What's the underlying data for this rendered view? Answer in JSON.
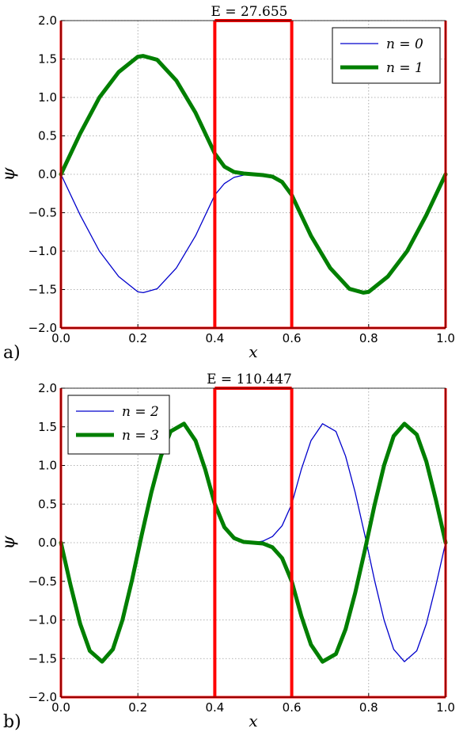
{
  "chart_data": [
    {
      "type": "line",
      "panel_label": "a)",
      "title": "E = 27.655",
      "xlabel": "x",
      "ylabel": "ψ",
      "xlim": [
        0.0,
        1.0
      ],
      "ylim": [
        -2.0,
        2.0
      ],
      "x_ticks": [
        "0.0",
        "0.2",
        "0.4",
        "0.6",
        "0.8",
        "1.0"
      ],
      "y_ticks": [
        "2.0",
        "1.5",
        "1.0",
        "0.5",
        "0.0",
        "−0.5",
        "−1.0",
        "−1.5",
        "−2.0"
      ],
      "grid": true,
      "legend_position": "top-right",
      "barrier_x": [
        0.4,
        0.6
      ],
      "barrier_color": "#ff0000",
      "series": [
        {
          "name": "n = 0",
          "color": "#0000cc",
          "width": "thin",
          "x": [
            0.0,
            0.05,
            0.1,
            0.15,
            0.2,
            0.214,
            0.25,
            0.3,
            0.35,
            0.4,
            0.425,
            0.45,
            0.475,
            0.5,
            0.525,
            0.55,
            0.575,
            0.6,
            0.65,
            0.7,
            0.75,
            0.786,
            0.8,
            0.85,
            0.9,
            0.95,
            1.0
          ],
          "y": [
            0.0,
            -0.53,
            -1.0,
            -1.33,
            -1.53,
            -1.54,
            -1.49,
            -1.22,
            -0.8,
            -0.27,
            -0.12,
            -0.04,
            -0.01,
            0.0,
            -0.01,
            -0.04,
            -0.12,
            -0.27,
            -0.8,
            -1.22,
            -1.49,
            -1.54,
            -1.53,
            -1.33,
            -1.0,
            -0.53,
            0.0
          ]
        },
        {
          "name": "n = 1",
          "color": "#007f00",
          "width": "thick",
          "x": [
            0.0,
            0.05,
            0.1,
            0.15,
            0.2,
            0.214,
            0.25,
            0.3,
            0.35,
            0.4,
            0.425,
            0.45,
            0.475,
            0.5,
            0.525,
            0.55,
            0.575,
            0.6,
            0.65,
            0.7,
            0.75,
            0.786,
            0.8,
            0.85,
            0.9,
            0.95,
            1.0
          ],
          "y": [
            0.0,
            0.53,
            1.0,
            1.33,
            1.53,
            1.54,
            1.49,
            1.22,
            0.8,
            0.27,
            0.1,
            0.03,
            0.01,
            0.0,
            -0.01,
            -0.03,
            -0.1,
            -0.27,
            -0.8,
            -1.22,
            -1.49,
            -1.54,
            -1.53,
            -1.33,
            -1.0,
            -0.53,
            0.0
          ]
        }
      ]
    },
    {
      "type": "line",
      "panel_label": "b)",
      "title": "E = 110.447",
      "xlabel": "x",
      "ylabel": "ψ",
      "xlim": [
        0.0,
        1.0
      ],
      "ylim": [
        -2.0,
        2.0
      ],
      "x_ticks": [
        "0.0",
        "0.2",
        "0.4",
        "0.6",
        "0.8",
        "1.0"
      ],
      "y_ticks": [
        "2.0",
        "1.5",
        "1.0",
        "0.5",
        "0.0",
        "−0.5",
        "−1.0",
        "−1.5",
        "−2.0"
      ],
      "grid": true,
      "legend_position": "top-left",
      "barrier_x": [
        0.4,
        0.6
      ],
      "barrier_color": "#ff0000",
      "series": [
        {
          "name": "n = 2",
          "color": "#0000cc",
          "width": "thin",
          "x": [
            0.0,
            0.025,
            0.05,
            0.075,
            0.107,
            0.135,
            0.16,
            0.185,
            0.21,
            0.235,
            0.26,
            0.285,
            0.32,
            0.35,
            0.375,
            0.4,
            0.425,
            0.45,
            0.475,
            0.5,
            0.525,
            0.55,
            0.575,
            0.6,
            0.625,
            0.65,
            0.68,
            0.715,
            0.74,
            0.765,
            0.79,
            0.815,
            0.84,
            0.865,
            0.893,
            0.925,
            0.95,
            0.975,
            1.0
          ],
          "y": [
            0.0,
            -0.55,
            -1.05,
            -1.4,
            -1.54,
            -1.38,
            -1.0,
            -0.48,
            0.1,
            0.65,
            1.12,
            1.44,
            1.54,
            1.32,
            0.95,
            0.5,
            0.22,
            0.08,
            0.02,
            0.0,
            0.02,
            0.08,
            0.22,
            0.5,
            0.95,
            1.32,
            1.54,
            1.44,
            1.12,
            0.65,
            0.1,
            -0.48,
            -1.0,
            -1.38,
            -1.54,
            -1.4,
            -1.05,
            -0.55,
            0.0
          ]
        },
        {
          "name": "n = 3",
          "color": "#007f00",
          "width": "thick",
          "x": [
            0.0,
            0.025,
            0.05,
            0.075,
            0.107,
            0.135,
            0.16,
            0.185,
            0.21,
            0.235,
            0.26,
            0.285,
            0.32,
            0.35,
            0.375,
            0.4,
            0.425,
            0.45,
            0.475,
            0.5,
            0.525,
            0.55,
            0.575,
            0.6,
            0.625,
            0.65,
            0.68,
            0.715,
            0.74,
            0.765,
            0.79,
            0.815,
            0.84,
            0.865,
            0.893,
            0.925,
            0.95,
            0.975,
            1.0
          ],
          "y": [
            0.0,
            -0.55,
            -1.05,
            -1.4,
            -1.54,
            -1.38,
            -1.0,
            -0.48,
            0.1,
            0.65,
            1.12,
            1.44,
            1.54,
            1.32,
            0.95,
            0.5,
            0.2,
            0.06,
            0.01,
            0.0,
            -0.01,
            -0.06,
            -0.2,
            -0.5,
            -0.95,
            -1.32,
            -1.54,
            -1.44,
            -1.12,
            -0.65,
            -0.1,
            0.48,
            1.0,
            1.38,
            1.54,
            1.4,
            1.05,
            0.55,
            0.0
          ]
        }
      ]
    }
  ]
}
